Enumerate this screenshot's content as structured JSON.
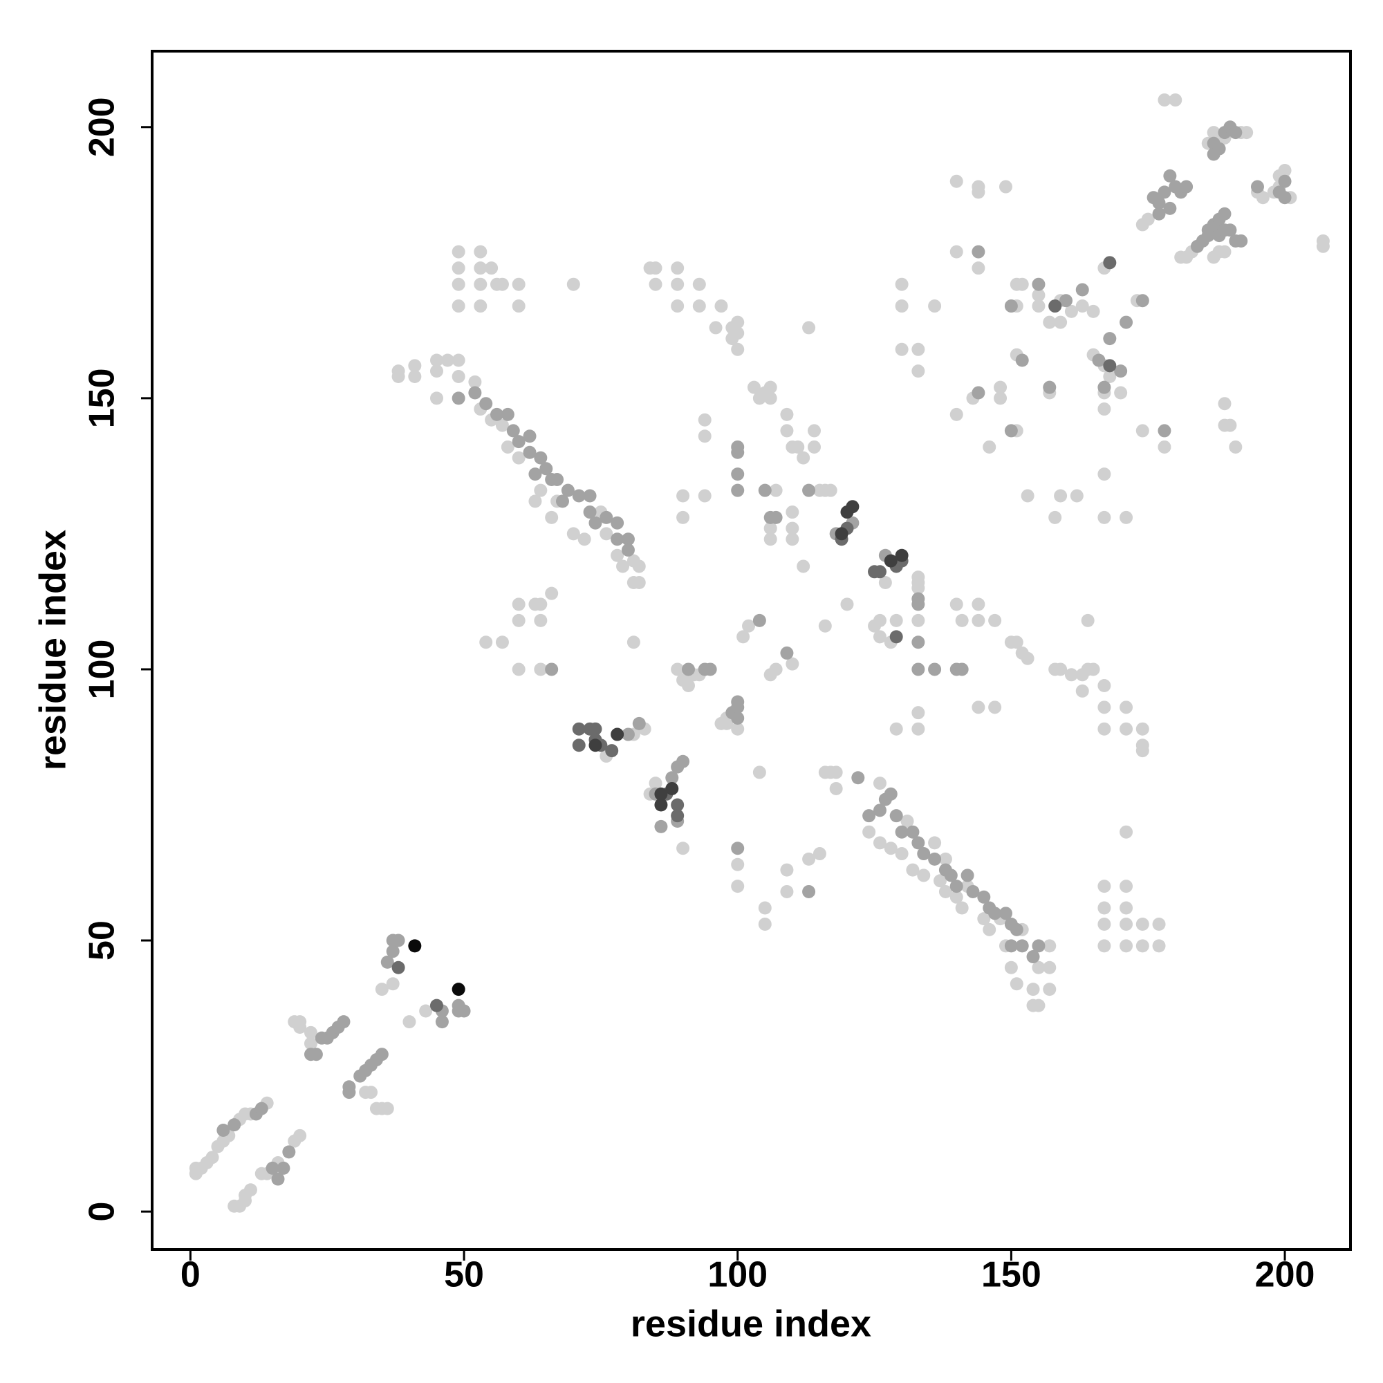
{
  "chart_data": {
    "type": "scatter",
    "xlabel": "residue index",
    "ylabel": "residue index",
    "xlim": [
      -7,
      212
    ],
    "ylim": [
      -7,
      214
    ],
    "xticks": [
      0,
      50,
      100,
      150,
      200
    ],
    "yticks": [
      0,
      50,
      100,
      150,
      200
    ],
    "grid": false,
    "series": [
      {
        "color": "#d0d0d0",
        "x": [
          1,
          1,
          2,
          3,
          4,
          5,
          6,
          7,
          9,
          10,
          11,
          14,
          8,
          9,
          10,
          10,
          11,
          13,
          14,
          16,
          19,
          20,
          19,
          20,
          20,
          22,
          22,
          34,
          35,
          36,
          35,
          37,
          40,
          43,
          32,
          33,
          84,
          85,
          90,
          76,
          81,
          83,
          89,
          90,
          91,
          92,
          93,
          97,
          98,
          98,
          100,
          101,
          102,
          106,
          107,
          110,
          100,
          100,
          107,
          110,
          110,
          110,
          106,
          106,
          103,
          104,
          105,
          106,
          106,
          109,
          109,
          110,
          111,
          112,
          114,
          114,
          113,
          104,
          105,
          105,
          109,
          109,
          113,
          115,
          116,
          117,
          118,
          118,
          115,
          116,
          117,
          120,
          116,
          112,
          133,
          133,
          133,
          127,
          125,
          126,
          126,
          128,
          129,
          133,
          133,
          133,
          129,
          38,
          38,
          41,
          41,
          45,
          45,
          47,
          45,
          49,
          49,
          52,
          53,
          55,
          57,
          58,
          60,
          63,
          64,
          66,
          67,
          70,
          72,
          75,
          76,
          78,
          79,
          81,
          81,
          124,
          126,
          128,
          130,
          132,
          134,
          137,
          138,
          140,
          141,
          145,
          146,
          149,
          150,
          151,
          154,
          155,
          154,
          157,
          157,
          157,
          155,
          152,
          148,
          142,
          138,
          136,
          131,
          126,
          49,
          49,
          49,
          49,
          53,
          53,
          53,
          53,
          55,
          56,
          57,
          60,
          60,
          70,
          84,
          85,
          85,
          89,
          89,
          89,
          93,
          93,
          97,
          96,
          99,
          99,
          100,
          100,
          100,
          60,
          63,
          64,
          66,
          60,
          64,
          54,
          57,
          60,
          64,
          90,
          90,
          94,
          94,
          94,
          81,
          82,
          82,
          167,
          171,
          174,
          177,
          167,
          171,
          174,
          177,
          167,
          171,
          167,
          171,
          171,
          174,
          174,
          171,
          174,
          167,
          171,
          167,
          167,
          163,
          163,
          161,
          164,
          159,
          158,
          140,
          141,
          144,
          144,
          147,
          150,
          151,
          152,
          153,
          144,
          147,
          140,
          144,
          144,
          149,
          140,
          144,
          151,
          152,
          155,
          155,
          151,
          151,
          148,
          148,
          143,
          140,
          151,
          146,
          153,
          159,
          158,
          159,
          157,
          159,
          161,
          163,
          157,
          162,
          164,
          165,
          165,
          167,
          168,
          167,
          167,
          170,
          167,
          165,
          173,
          174,
          178,
          167,
          167,
          171,
          174,
          175,
          181,
          182,
          183,
          187,
          188,
          189,
          195,
          196,
          198,
          199,
          199,
          200,
          201,
          207,
          207,
          178,
          180,
          186,
          187,
          189,
          192,
          193,
          130,
          130,
          130,
          133,
          133,
          136,
          189,
          189,
          190,
          191
        ],
        "values": [
          8,
          7,
          8,
          9,
          10,
          12,
          13,
          14,
          17,
          18,
          18,
          20,
          1,
          1,
          2,
          3,
          4,
          7,
          7,
          9,
          13,
          14,
          35,
          35,
          34,
          31,
          33,
          19,
          19,
          19,
          41,
          42,
          35,
          37,
          22,
          22,
          77,
          79,
          67,
          84,
          88,
          89,
          100,
          98,
          97,
          99,
          99,
          90,
          91,
          90,
          89,
          106,
          108,
          99,
          100,
          101,
          64,
          60,
          133,
          129,
          126,
          124,
          126,
          124,
          152,
          150,
          151,
          152,
          150,
          147,
          144,
          141,
          141,
          139,
          144,
          141,
          163,
          81,
          56,
          53,
          63,
          59,
          65,
          66,
          81,
          81,
          78,
          81,
          133,
          133,
          133,
          112,
          108,
          119,
          115,
          116,
          117,
          116,
          108,
          106,
          109,
          105,
          109,
          109,
          92,
          89,
          89,
          155,
          154,
          156,
          154,
          157,
          155,
          157,
          150,
          157,
          154,
          153,
          148,
          146,
          145,
          141,
          139,
          131,
          133,
          128,
          131,
          125,
          124,
          129,
          125,
          121,
          119,
          120,
          116,
          70,
          68,
          67,
          66,
          63,
          62,
          61,
          59,
          58,
          56,
          54,
          52,
          49,
          45,
          42,
          41,
          38,
          38,
          41,
          45,
          49,
          45,
          52,
          54,
          60,
          65,
          68,
          72,
          79,
          177,
          174,
          171,
          167,
          177,
          174,
          171,
          167,
          174,
          171,
          171,
          171,
          167,
          171,
          174,
          174,
          171,
          174,
          171,
          167,
          171,
          167,
          167,
          163,
          163,
          161,
          164,
          162,
          159,
          112,
          112,
          112,
          114,
          109,
          109,
          105,
          105,
          100,
          100,
          132,
          128,
          132,
          143,
          146,
          105,
          116,
          119,
          49,
          49,
          49,
          49,
          53,
          53,
          53,
          53,
          56,
          56,
          60,
          60,
          70,
          85,
          86,
          89,
          89,
          89,
          93,
          93,
          97,
          96,
          99,
          99,
          100,
          100,
          100,
          112,
          109,
          112,
          109,
          109,
          105,
          105,
          103,
          102,
          93,
          93,
          190,
          188,
          189,
          189,
          177,
          174,
          171,
          171,
          169,
          167,
          167,
          158,
          152,
          150,
          150,
          147,
          144,
          141,
          132,
          132,
          128,
          164,
          164,
          168,
          166,
          167,
          151,
          132,
          109,
          100,
          158,
          156,
          154,
          151,
          148,
          151,
          174,
          166,
          168,
          144,
          141,
          136,
          128,
          128,
          182,
          183,
          176,
          176,
          177,
          176,
          177,
          177,
          188,
          187,
          188,
          189,
          191,
          192,
          187,
          179,
          178,
          205,
          205,
          197,
          199,
          198,
          199,
          199,
          171,
          167,
          159,
          159,
          155,
          167,
          149,
          145,
          145,
          141
        ]
      },
      {
        "color": "#a3a3a3",
        "x": [
          6,
          8,
          12,
          13,
          15,
          16,
          17,
          18,
          22,
          23,
          24,
          25,
          26,
          27,
          28,
          29,
          29,
          31,
          32,
          33,
          34,
          35,
          36,
          37,
          37,
          38,
          46,
          46,
          49,
          50,
          49,
          80,
          82,
          85,
          88,
          89,
          90,
          89,
          86,
          91,
          94,
          95,
          99,
          100,
          100,
          100,
          104,
          109,
          100,
          100,
          100,
          100,
          100,
          105,
          106,
          107,
          113,
          113,
          118,
          121,
          133,
          127,
          133,
          133,
          136,
          133,
          49,
          52,
          54,
          56,
          58,
          59,
          60,
          62,
          62,
          63,
          64,
          65,
          66,
          67,
          68,
          69,
          71,
          73,
          73,
          74,
          76,
          78,
          78,
          80,
          80,
          124,
          126,
          127,
          128,
          129,
          130,
          132,
          133,
          134,
          136,
          138,
          139,
          140,
          142,
          143,
          145,
          146,
          147,
          149,
          150,
          151,
          150,
          152,
          154,
          155,
          122,
          66,
          140,
          141,
          144,
          155,
          150,
          152,
          144,
          150,
          160,
          163,
          157,
          166,
          168,
          167,
          170,
          171,
          174,
          178,
          176,
          177,
          178,
          179,
          180,
          181,
          182,
          179,
          177,
          184,
          185,
          186,
          187,
          188,
          189,
          190,
          191,
          192,
          186,
          188,
          189,
          187,
          189,
          190,
          191,
          187,
          188,
          200,
          195,
          199,
          200
        ],
        "values": [
          15,
          16,
          18,
          19,
          8,
          6,
          8,
          11,
          29,
          29,
          32,
          32,
          33,
          34,
          35,
          22,
          23,
          25,
          26,
          27,
          28,
          29,
          46,
          48,
          50,
          50,
          35,
          37,
          37,
          37,
          38,
          88,
          90,
          77,
          80,
          82,
          83,
          72,
          71,
          100,
          100,
          100,
          92,
          93,
          91,
          94,
          109,
          103,
          140,
          141,
          136,
          133,
          67,
          133,
          128,
          128,
          59,
          133,
          125,
          127,
          113,
          121,
          105,
          100,
          100,
          112,
          150,
          151,
          149,
          147,
          147,
          144,
          142,
          143,
          140,
          136,
          139,
          137,
          135,
          135,
          131,
          133,
          132,
          132,
          129,
          127,
          128,
          127,
          124,
          124,
          122,
          73,
          74,
          76,
          77,
          73,
          70,
          70,
          68,
          66,
          65,
          63,
          62,
          60,
          62,
          59,
          58,
          56,
          55,
          55,
          53,
          52,
          49,
          49,
          47,
          49,
          80,
          100,
          100,
          100,
          177,
          171,
          167,
          157,
          151,
          144,
          168,
          170,
          152,
          157,
          161,
          152,
          155,
          164,
          168,
          144,
          187,
          186,
          188,
          191,
          189,
          188,
          189,
          185,
          184,
          178,
          179,
          181,
          182,
          183,
          184,
          181,
          179,
          179,
          180,
          180,
          181,
          197,
          199,
          200,
          199,
          195,
          196,
          190,
          189,
          188,
          187
        ]
      },
      {
        "color": "#6b6b6b",
        "x": [
          38,
          45,
          71,
          73,
          74,
          74,
          75,
          77,
          71,
          89,
          89,
          87,
          119,
          120,
          125,
          126,
          129,
          130,
          129,
          158,
          168,
          168
        ],
        "values": [
          45,
          38,
          89,
          89,
          89,
          87,
          86,
          85,
          86,
          75,
          73,
          77,
          124,
          126,
          118,
          118,
          119,
          120,
          106,
          167,
          156,
          175
        ]
      },
      {
        "color": "#3f3f3f",
        "x": [
          74,
          78,
          86,
          88,
          86,
          120,
          121,
          128,
          130,
          119
        ],
        "values": [
          86,
          88,
          75,
          78,
          77,
          129,
          130,
          120,
          121,
          125
        ]
      },
      {
        "color": "#0a0a0a",
        "x": [
          41,
          49
        ],
        "values": [
          49,
          41
        ]
      }
    ]
  }
}
